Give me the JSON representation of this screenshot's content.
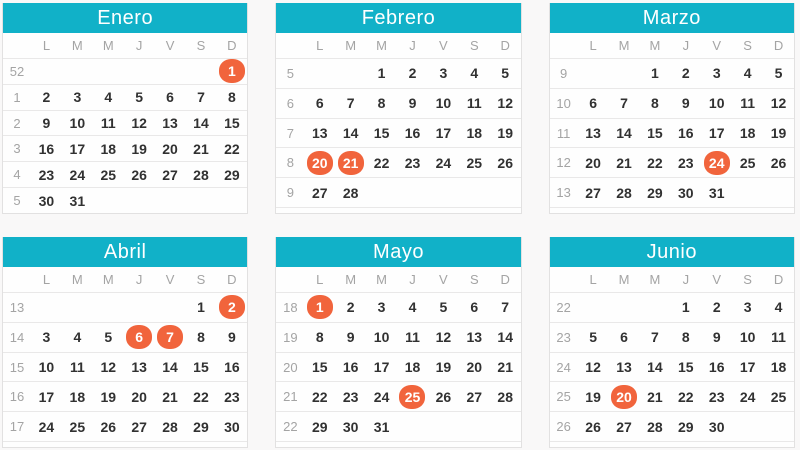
{
  "theme": {
    "accent": "#11b1c8",
    "accent_text": "#ffffff",
    "highlight": "#f1643c",
    "highlight_text": "#ffffff",
    "day_text": "#313131",
    "muted_text": "#a4a4a4",
    "panel_bg": "#fefefe",
    "page_bg": "#f9f8f8",
    "border": "#e2e1e1",
    "row_border": "#e9e8e8"
  },
  "weekday_labels": [
    "L",
    "M",
    "M",
    "J",
    "V",
    "S",
    "D"
  ],
  "months": [
    {
      "name": "Enero",
      "highlighted_days": [
        1
      ],
      "weeks": [
        {
          "num": "52",
          "days": [
            "",
            "",
            "",
            "",
            "",
            "",
            "1"
          ]
        },
        {
          "num": "1",
          "days": [
            "2",
            "3",
            "4",
            "5",
            "6",
            "7",
            "8"
          ]
        },
        {
          "num": "2",
          "days": [
            "9",
            "10",
            "11",
            "12",
            "13",
            "14",
            "15"
          ]
        },
        {
          "num": "3",
          "days": [
            "16",
            "17",
            "18",
            "19",
            "20",
            "21",
            "22"
          ]
        },
        {
          "num": "4",
          "days": [
            "23",
            "24",
            "25",
            "26",
            "27",
            "28",
            "29"
          ]
        },
        {
          "num": "5",
          "days": [
            "30",
            "31",
            "",
            "",
            "",
            "",
            ""
          ]
        }
      ]
    },
    {
      "name": "Febrero",
      "highlighted_days": [
        20,
        21
      ],
      "weeks": [
        {
          "num": "5",
          "days": [
            "",
            "",
            "1",
            "2",
            "3",
            "4",
            "5"
          ]
        },
        {
          "num": "6",
          "days": [
            "6",
            "7",
            "8",
            "9",
            "10",
            "11",
            "12"
          ]
        },
        {
          "num": "7",
          "days": [
            "13",
            "14",
            "15",
            "16",
            "17",
            "18",
            "19"
          ]
        },
        {
          "num": "8",
          "days": [
            "20",
            "21",
            "22",
            "23",
            "24",
            "25",
            "26"
          ]
        },
        {
          "num": "9",
          "days": [
            "27",
            "28",
            "",
            "",
            "",
            "",
            ""
          ]
        },
        {
          "num": "",
          "days": [
            "",
            "",
            "",
            "",
            "",
            "",
            ""
          ]
        }
      ]
    },
    {
      "name": "Marzo",
      "highlighted_days": [
        24
      ],
      "weeks": [
        {
          "num": "9",
          "days": [
            "",
            "",
            "1",
            "2",
            "3",
            "4",
            "5"
          ]
        },
        {
          "num": "10",
          "days": [
            "6",
            "7",
            "8",
            "9",
            "10",
            "11",
            "12"
          ]
        },
        {
          "num": "11",
          "days": [
            "13",
            "14",
            "15",
            "16",
            "17",
            "18",
            "19"
          ]
        },
        {
          "num": "12",
          "days": [
            "20",
            "21",
            "22",
            "23",
            "24",
            "25",
            "26"
          ]
        },
        {
          "num": "13",
          "days": [
            "27",
            "28",
            "29",
            "30",
            "31",
            "",
            ""
          ]
        },
        {
          "num": "",
          "days": [
            "",
            "",
            "",
            "",
            "",
            "",
            ""
          ]
        }
      ]
    },
    {
      "name": "Abril",
      "highlighted_days": [
        2,
        6,
        7
      ],
      "weeks": [
        {
          "num": "13",
          "days": [
            "",
            "",
            "",
            "",
            "",
            "1",
            "2"
          ]
        },
        {
          "num": "14",
          "days": [
            "3",
            "4",
            "5",
            "6",
            "7",
            "8",
            "9"
          ]
        },
        {
          "num": "15",
          "days": [
            "10",
            "11",
            "12",
            "13",
            "14",
            "15",
            "16"
          ]
        },
        {
          "num": "16",
          "days": [
            "17",
            "18",
            "19",
            "20",
            "21",
            "22",
            "23"
          ]
        },
        {
          "num": "17",
          "days": [
            "24",
            "25",
            "26",
            "27",
            "28",
            "29",
            "30"
          ]
        },
        {
          "num": "",
          "days": [
            "",
            "",
            "",
            "",
            "",
            "",
            ""
          ]
        }
      ]
    },
    {
      "name": "Mayo",
      "highlighted_days": [
        1,
        25
      ],
      "weeks": [
        {
          "num": "18",
          "days": [
            "1",
            "2",
            "3",
            "4",
            "5",
            "6",
            "7"
          ]
        },
        {
          "num": "19",
          "days": [
            "8",
            "9",
            "10",
            "11",
            "12",
            "13",
            "14"
          ]
        },
        {
          "num": "20",
          "days": [
            "15",
            "16",
            "17",
            "18",
            "19",
            "20",
            "21"
          ]
        },
        {
          "num": "21",
          "days": [
            "22",
            "23",
            "24",
            "25",
            "26",
            "27",
            "28"
          ]
        },
        {
          "num": "22",
          "days": [
            "29",
            "30",
            "31",
            "",
            "",
            "",
            ""
          ]
        },
        {
          "num": "",
          "days": [
            "",
            "",
            "",
            "",
            "",
            "",
            ""
          ]
        }
      ]
    },
    {
      "name": "Junio",
      "highlighted_days": [
        20
      ],
      "weeks": [
        {
          "num": "22",
          "days": [
            "",
            "",
            "",
            "1",
            "2",
            "3",
            "4"
          ]
        },
        {
          "num": "23",
          "days": [
            "5",
            "6",
            "7",
            "8",
            "9",
            "10",
            "11"
          ]
        },
        {
          "num": "24",
          "days": [
            "12",
            "13",
            "14",
            "15",
            "16",
            "17",
            "18"
          ]
        },
        {
          "num": "25",
          "days": [
            "19",
            "20",
            "21",
            "22",
            "23",
            "24",
            "25"
          ]
        },
        {
          "num": "26",
          "days": [
            "26",
            "27",
            "28",
            "29",
            "30",
            "",
            ""
          ]
        },
        {
          "num": "",
          "days": [
            "",
            "",
            "",
            "",
            "",
            "",
            ""
          ]
        }
      ]
    }
  ]
}
